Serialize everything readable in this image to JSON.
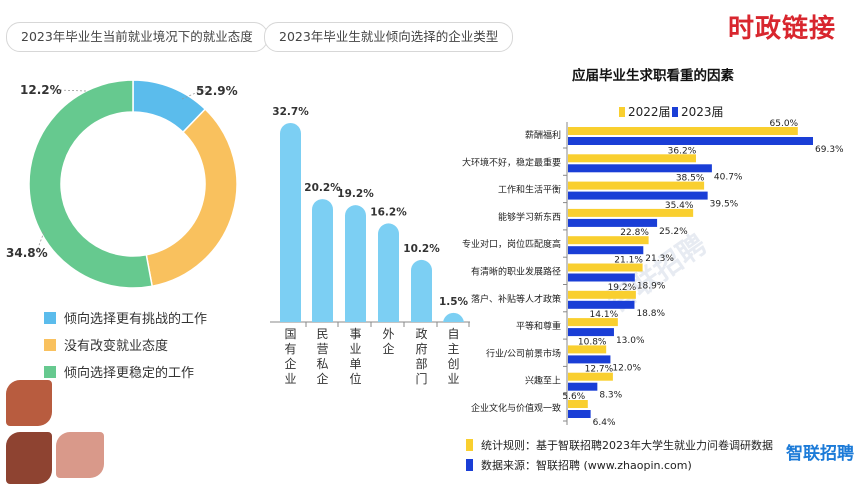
{
  "header": {
    "left_pill": "2023年毕业生当前就业境况下的就业态度",
    "mid_pill": "2023年毕业生就业倾向选择的企业类型",
    "brand": "时政链接"
  },
  "colors": {
    "blue_light": "#5bbcec",
    "yellow": "#f9c15e",
    "green": "#66c98f",
    "bar_light": "#7ccff3",
    "bar_yellow": "#f9cf2f",
    "bar_blue": "#1a3ed6"
  },
  "chart_data": [
    {
      "type": "pie",
      "style": "donut",
      "labels": [
        "倾向选择更有挑战的工作",
        "没有改变就业态度",
        "倾向选择更稳定的工作"
      ],
      "values": [
        12.2,
        34.8,
        52.9
      ],
      "value_labels": [
        "12.2%",
        "34.8%",
        "52.9%"
      ],
      "colors": [
        "#5bbcec",
        "#f9c15e",
        "#66c98f"
      ],
      "legend_placement": "bottom"
    },
    {
      "type": "bar",
      "categories": [
        "国有企业",
        "民营私企",
        "事业单位",
        "外企",
        "政府部门",
        "自主创业"
      ],
      "values": [
        32.7,
        20.2,
        19.2,
        16.2,
        10.2,
        1.5
      ],
      "value_labels": [
        "32.7%",
        "20.2%",
        "19.2%",
        "16.2%",
        "10.2%",
        "1.5%"
      ],
      "ylim": [
        0,
        35
      ],
      "grid": false
    },
    {
      "type": "bar",
      "orientation": "horizontal",
      "title": "应届毕业生求职看重的因素",
      "categories": [
        "薪酬福利",
        "大环境不好，稳定最重要",
        "工作和生活平衡",
        "能够学习新东西",
        "专业对口，岗位匹配度高",
        "有清晰的职业发展路径",
        "落户、补贴等人才政策",
        "平等和尊重",
        "行业/公司前景市场",
        "兴趣至上",
        "企业文化与价值观一致"
      ],
      "series": [
        {
          "name": "2022届",
          "values": [
            65.0,
            36.2,
            38.5,
            35.4,
            22.8,
            21.1,
            19.2,
            14.1,
            10.8,
            12.7,
            5.6
          ],
          "value_labels": [
            "65.0%",
            "36.2%",
            "38.5%",
            "35.4%",
            "22.8%",
            "21.1%",
            "19.2%",
            "14.1%",
            "10.8%",
            "12.7%",
            "5.6%"
          ]
        },
        {
          "name": "2023届",
          "values": [
            69.3,
            40.7,
            39.5,
            25.2,
            21.3,
            18.9,
            18.8,
            13.0,
            12.0,
            8.3,
            6.4
          ],
          "value_labels": [
            "69.3%",
            "40.7%",
            "39.5%",
            "25.2%",
            "21.3%",
            "18.9%",
            "18.8%",
            "13.0%",
            "12.0%",
            "8.3%",
            "6.4%"
          ]
        }
      ],
      "xlim": [
        0,
        70
      ],
      "legend_placement": "top",
      "footnotes": [
        "统计规则：基于智联招聘2023年大学生就业力问卷调研数据",
        "数据来源：智联招聘 (www.zhaopin.com)"
      ]
    }
  ],
  "watermark": "智联招聘",
  "logo": "智联招聘"
}
